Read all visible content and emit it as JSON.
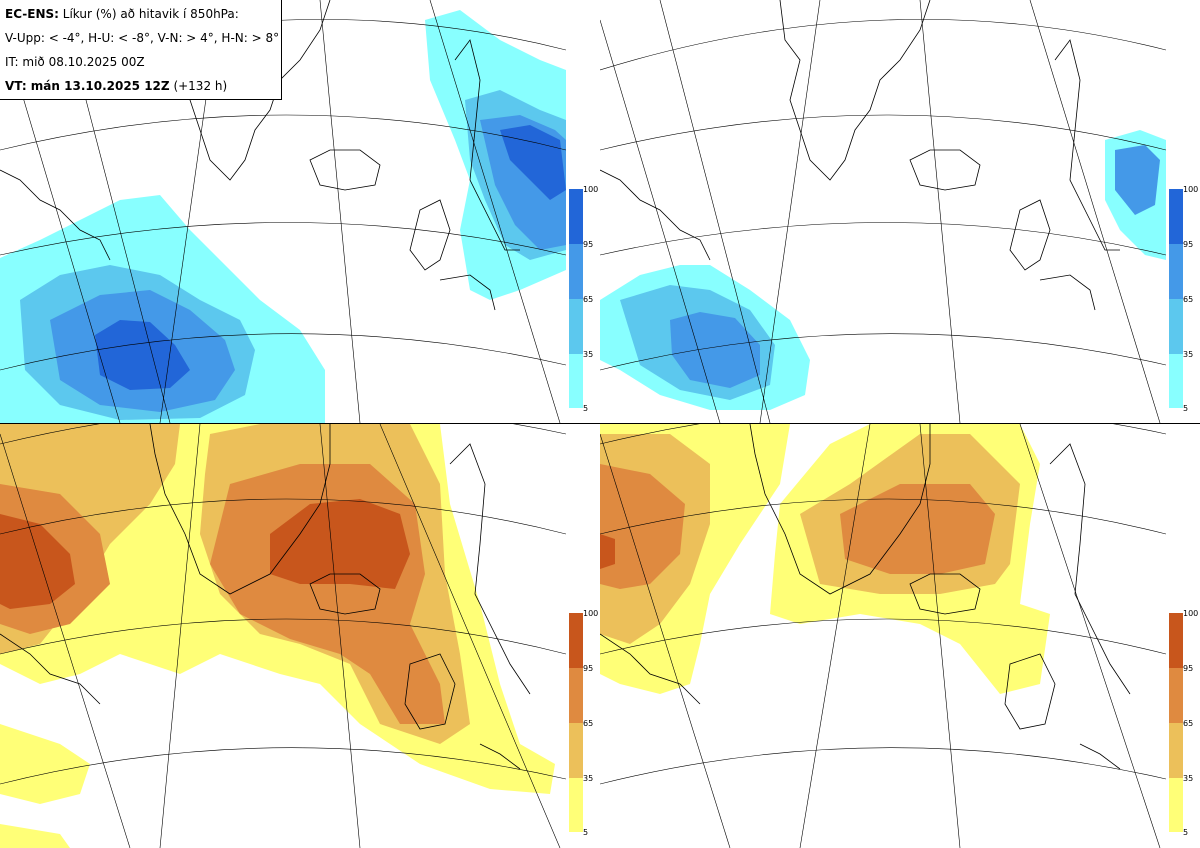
{
  "header": {
    "model_label": "EC-ENS:",
    "title_rest": "Líkur (%) að hitavik í 850hPa:",
    "legend_line": "V-Upp: < -4°, H-U: < -8°, V-N: > 4°, H-N: > 8°",
    "issue_time": "IT: mið 08.10.2025 00Z",
    "valid_label": "VT: mán 13.10.2025 12Z",
    "valid_offset": "(+132 h)"
  },
  "colorbars": {
    "ticks": [
      "100",
      "95",
      "65",
      "35",
      "5"
    ],
    "cold_colors": [
      "#88ffff",
      "#5cc8ee",
      "#4499e8",
      "#2266d8"
    ],
    "warm_colors": [
      "#ffff77",
      "#ecc05a",
      "#df8a40",
      "#c8561c"
    ]
  },
  "panels": [
    {
      "id": "top-left",
      "quantity": "V-Upp",
      "threshold": "< -4°"
    },
    {
      "id": "top-right",
      "quantity": "H-U",
      "threshold": "< -8°"
    },
    {
      "id": "bottom-left",
      "quantity": "V-N",
      "threshold": "> 4°"
    },
    {
      "id": "bottom-right",
      "quantity": "H-N",
      "threshold": "> 8°"
    }
  ]
}
